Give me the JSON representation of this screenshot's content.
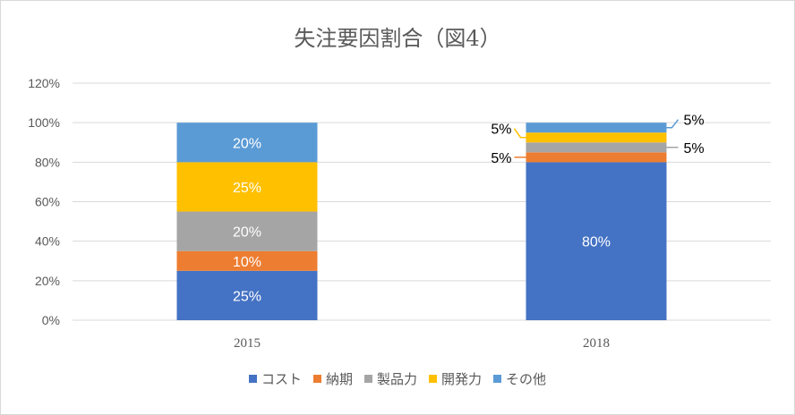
{
  "chart_data": {
    "type": "bar",
    "stacked": true,
    "title": "失注要因割合（図4）",
    "categories": [
      "2015",
      "2018"
    ],
    "series": [
      {
        "name": "コスト",
        "values": [
          25,
          80
        ],
        "labels": [
          "25%",
          "80%"
        ],
        "color": "#4472c4"
      },
      {
        "name": "納期",
        "values": [
          10,
          5
        ],
        "labels": [
          "10%",
          "5%"
        ],
        "color": "#ed7d31"
      },
      {
        "name": "製品力",
        "values": [
          20,
          5
        ],
        "labels": [
          "20%",
          "5%"
        ],
        "color": "#a5a5a5"
      },
      {
        "name": "開発力",
        "values": [
          25,
          5
        ],
        "labels": [
          "25%",
          "5%"
        ],
        "color": "#ffc000"
      },
      {
        "name": "その他",
        "values": [
          20,
          5
        ],
        "labels": [
          "20%",
          "5%"
        ],
        "color": "#5b9bd5"
      }
    ],
    "ylim": [
      0,
      120
    ],
    "yticks": [
      "0%",
      "20%",
      "40%",
      "60%",
      "80%",
      "100%",
      "120%"
    ],
    "grid": true,
    "legend": "bottom",
    "axis_color": "#d9d9d9",
    "text_color": "#595959"
  }
}
